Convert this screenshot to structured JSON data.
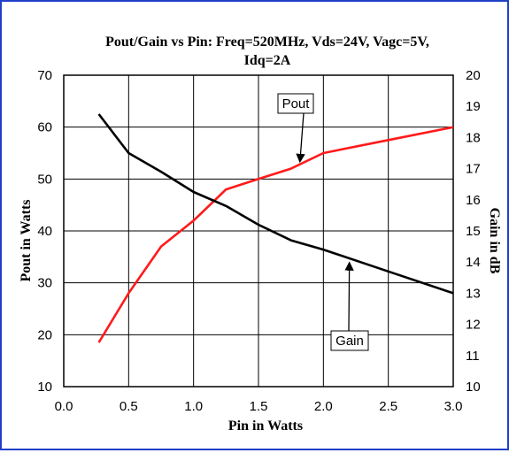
{
  "chart_data": {
    "type": "line",
    "title": "Pout/Gain vs Pin: Freq=520MHz, Vds=24V, Vagc=5V,",
    "title_line2": "Idq=2A",
    "xlabel": "Pin in Watts",
    "ylabel_left": "Pout in Watts",
    "ylabel_right": "Gain in dB",
    "xlim": [
      0.0,
      3.0
    ],
    "ylim_left": [
      10,
      70
    ],
    "ylim_right": [
      10,
      20
    ],
    "x_ticks": [
      "0.0",
      "0.5",
      "1.0",
      "1.5",
      "2.0",
      "2.5",
      "3.0"
    ],
    "y_left_ticks": [
      "10",
      "20",
      "30",
      "40",
      "50",
      "60",
      "70"
    ],
    "y_right_ticks": [
      "10",
      "11",
      "12",
      "13",
      "14",
      "15",
      "16",
      "17",
      "18",
      "19",
      "20"
    ],
    "grid": true,
    "series": [
      {
        "name": "Pout",
        "axis": "left",
        "color": "#ff1a1a",
        "x": [
          0.27,
          0.5,
          0.75,
          1.0,
          1.25,
          1.5,
          1.75,
          2.0,
          2.5,
          3.0
        ],
        "values": [
          18.5,
          28,
          37,
          42,
          48,
          50,
          52,
          55,
          57.5,
          60
        ]
      },
      {
        "name": "Gain",
        "axis": "right",
        "color": "#000000",
        "x": [
          0.27,
          0.5,
          0.75,
          1.0,
          1.25,
          1.5,
          1.75,
          2.0,
          2.5,
          3.0
        ],
        "values": [
          18.75,
          17.5,
          16.9,
          16.25,
          15.8,
          15.2,
          14.7,
          14.4,
          13.7,
          13.0
        ]
      }
    ],
    "annotations": [
      {
        "text": "Pout",
        "target_series": "Pout",
        "target_x": 1.82
      },
      {
        "text": "Gain",
        "target_series": "Gain",
        "target_x": 2.2
      }
    ]
  }
}
